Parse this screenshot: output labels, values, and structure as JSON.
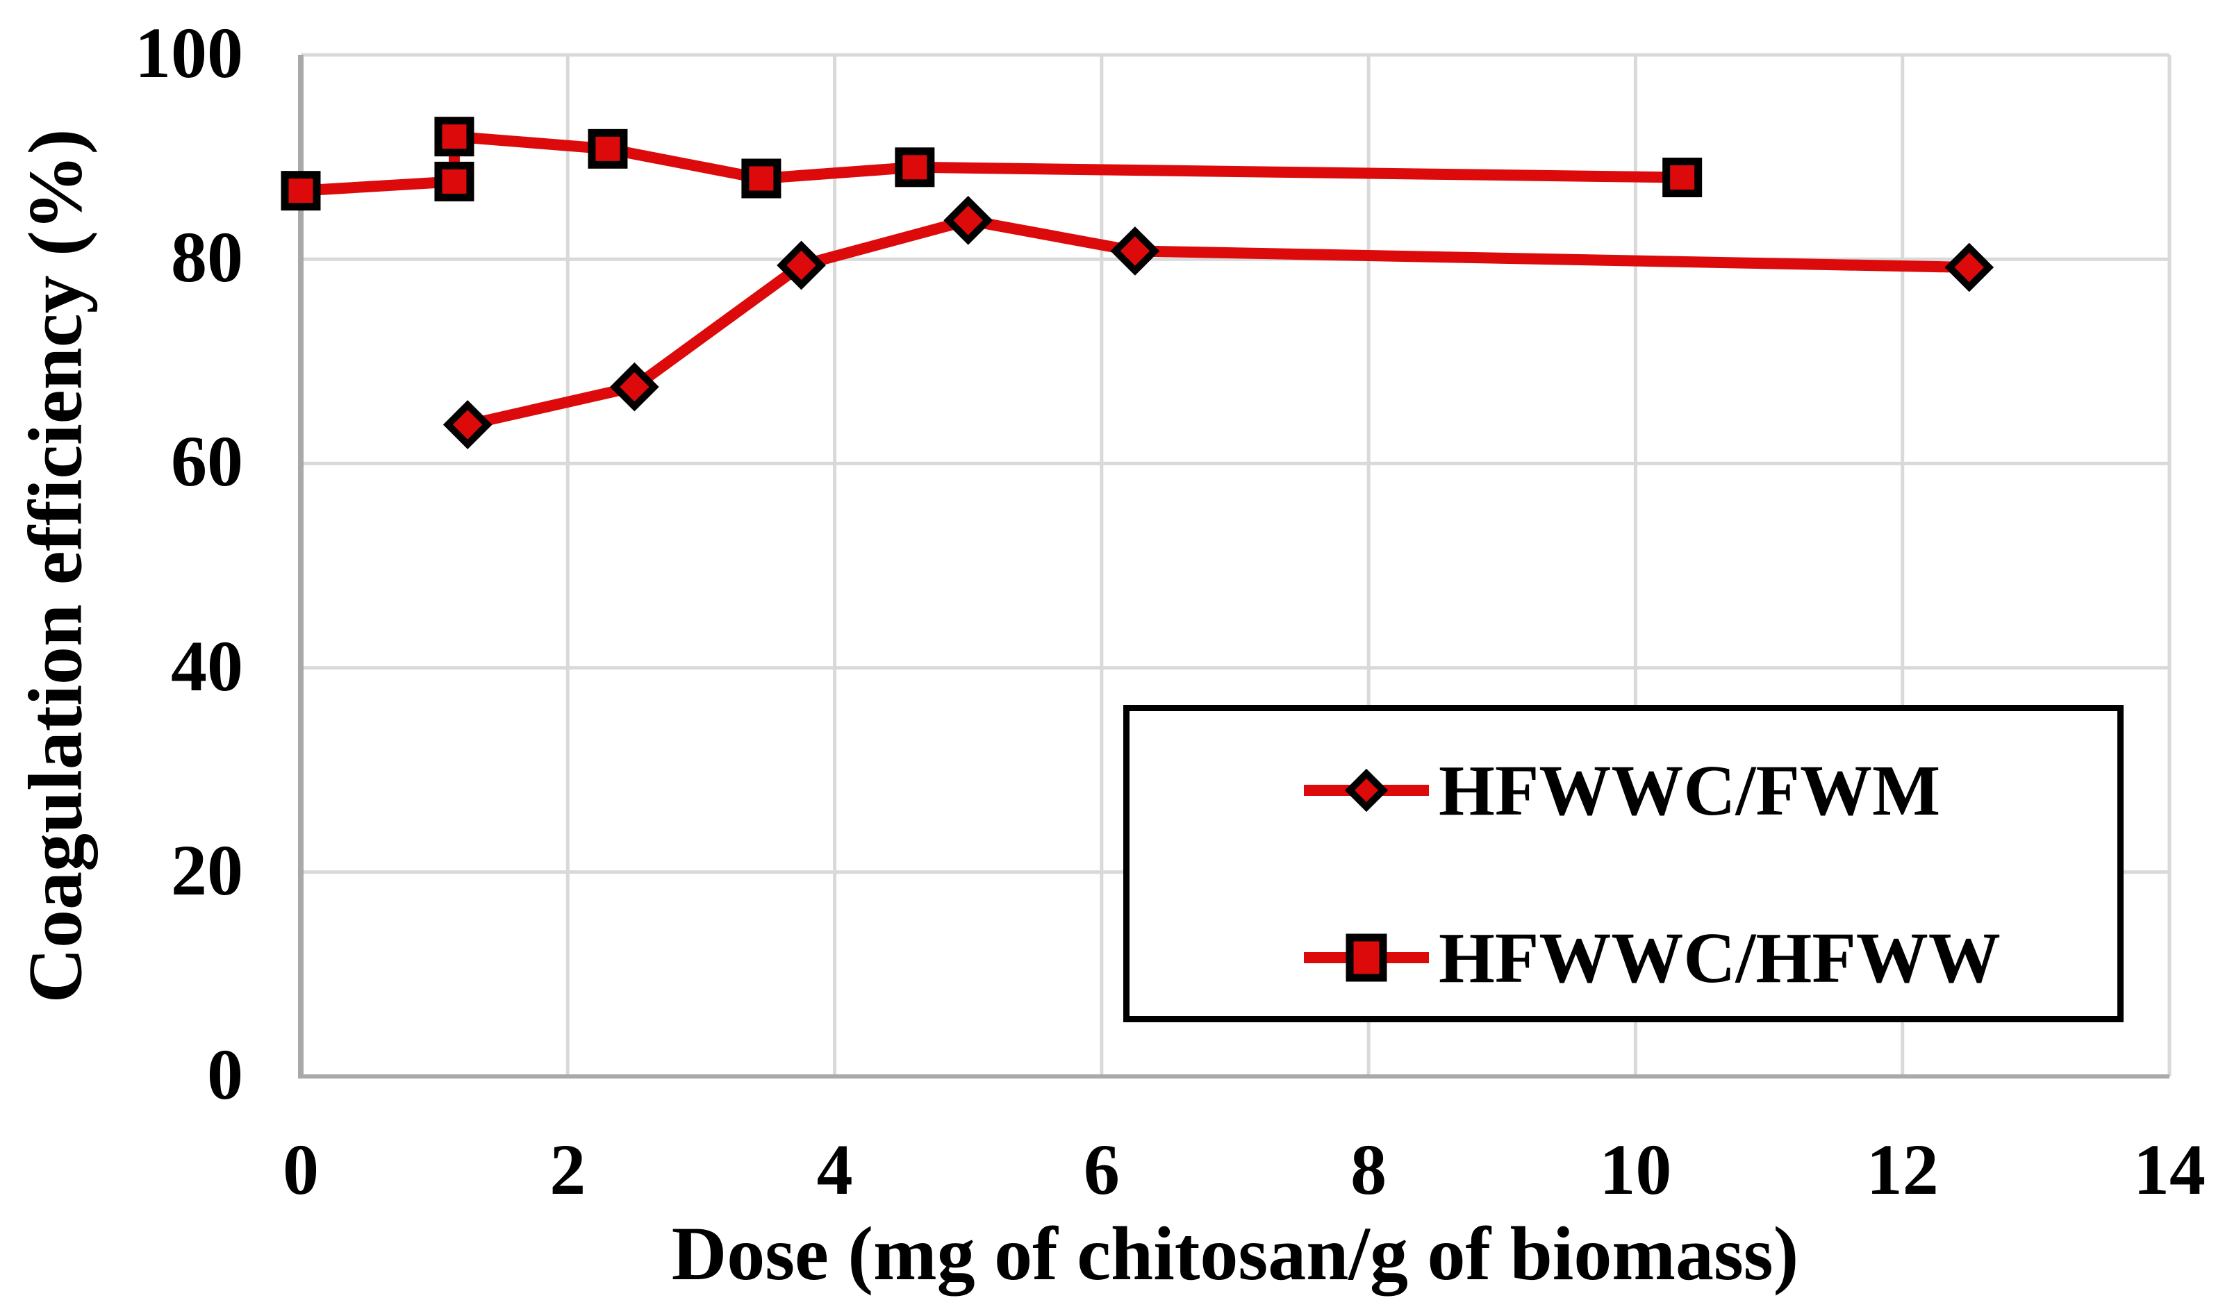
{
  "styles": {
    "accent_red": "#DC0A0A",
    "marker_outline": "#000000",
    "gridline_color": "#D9D9D9",
    "axis_line_color": "#A9A9A9",
    "legend_border_color": "#000000",
    "text_color": "#000000",
    "background": "#FFFFFF"
  },
  "chart_data": {
    "type": "line",
    "title": "",
    "xlabel": "Dose (mg of chitosan/g of biomass)",
    "ylabel": "Coagulation efficiency (%)",
    "xlim": [
      0,
      14
    ],
    "ylim": [
      0,
      100
    ],
    "x_ticks": [
      0,
      2,
      4,
      6,
      8,
      10,
      12,
      14
    ],
    "y_ticks": [
      0,
      20,
      40,
      60,
      80,
      100
    ],
    "grid": true,
    "legend_position": "inside-lower-right",
    "series": [
      {
        "name": "HFWWC/FWM",
        "marker": "diamond",
        "color": "#DC0A0A",
        "points": [
          [
            1.25,
            63.8
          ],
          [
            2.5,
            67.5
          ],
          [
            3.75,
            79.4
          ],
          [
            5,
            83.8
          ],
          [
            6.25,
            80.8
          ],
          [
            12.5,
            79.2
          ]
        ]
      },
      {
        "name": "HFWWC/HFWW",
        "marker": "square",
        "color": "#DC0A0A",
        "points": [
          [
            0,
            86.7
          ],
          [
            1.15,
            87.6
          ],
          [
            1.15,
            92.0
          ],
          [
            2.3,
            90.8
          ],
          [
            3.45,
            87.9
          ],
          [
            4.6,
            89.0
          ],
          [
            10.35,
            88.0
          ]
        ]
      }
    ]
  }
}
